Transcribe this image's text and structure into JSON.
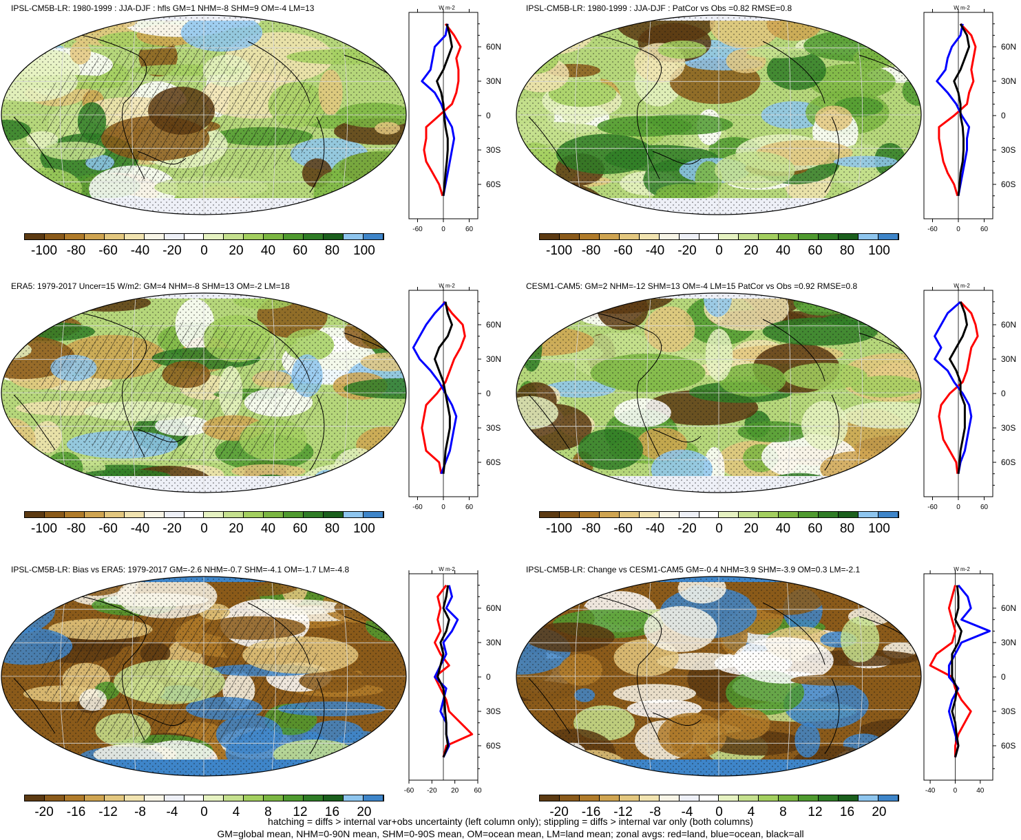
{
  "panels": [
    {
      "title": "IPSL-CM5B-LR: 1980-1999 : JJA-DJF : hfls GM=1 NHM=-8 SHM=9 OM=-4 LM=13",
      "colorbar_labels": [
        "-100",
        "-80",
        "-60",
        "-40",
        "-20",
        "0",
        "20",
        "40",
        "60",
        "80",
        "100"
      ],
      "zonal": {
        "unit": "W m-2",
        "xticks": [
          "-60",
          "0",
          "60"
        ],
        "xrange": [
          -80,
          80
        ],
        "yticks": [
          "60N",
          "30N",
          "0",
          "30S",
          "60S"
        ],
        "hatching": true,
        "lat": [
          80,
          70,
          60,
          50,
          40,
          30,
          20,
          10,
          0,
          -10,
          -20,
          -30,
          -40,
          -50,
          -60,
          -70
        ],
        "land": [
          5,
          25,
          40,
          30,
          35,
          35,
          30,
          20,
          -10,
          -40,
          -40,
          -45,
          -40,
          -25,
          -10,
          -2
        ],
        "ocean": [
          10,
          5,
          -20,
          -25,
          -30,
          -50,
          -20,
          -5,
          5,
          20,
          25,
          20,
          15,
          10,
          5,
          0
        ],
        "all": [
          8,
          15,
          20,
          10,
          0,
          -15,
          -5,
          0,
          2,
          5,
          10,
          10,
          8,
          5,
          3,
          0
        ]
      }
    },
    {
      "title": "IPSL-CM5B-LR: 1980-1999 : JJA-DJF : PatCor vs Obs =0.82 RMSE=0.8",
      "colorbar_labels": [
        "-100",
        "-80",
        "-60",
        "-40",
        "-20",
        "0",
        "20",
        "40",
        "60",
        "80",
        "100"
      ],
      "zonal": {
        "unit": "W m-2",
        "xticks": [
          "-60",
          "0",
          "60"
        ],
        "xrange": [
          -80,
          80
        ],
        "yticks": [
          "60N",
          "30N",
          "0",
          "30S",
          "60S"
        ],
        "hatching": false,
        "lat": [
          80,
          70,
          60,
          50,
          40,
          30,
          20,
          10,
          0,
          -10,
          -20,
          -30,
          -40,
          -50,
          -60,
          -70
        ],
        "land": [
          5,
          30,
          40,
          35,
          30,
          35,
          25,
          20,
          -10,
          -45,
          -45,
          -40,
          -35,
          -25,
          -10,
          -2
        ],
        "ocean": [
          10,
          5,
          -15,
          -25,
          -30,
          -50,
          -25,
          -5,
          8,
          25,
          20,
          20,
          15,
          10,
          5,
          0
        ],
        "all": [
          5,
          20,
          25,
          15,
          5,
          -10,
          0,
          5,
          5,
          10,
          12,
          12,
          10,
          5,
          3,
          0
        ]
      }
    },
    {
      "title": "ERA5: 1979-2017 Uncer=15 W/m2: GM=4 NHM=-8 SHM=13 OM=-2 LM=18",
      "colorbar_labels": [
        "-100",
        "-80",
        "-60",
        "-40",
        "-20",
        "0",
        "20",
        "40",
        "60",
        "80",
        "100"
      ],
      "zonal": {
        "unit": "W m-2",
        "xticks": [
          "-60",
          "0",
          "60"
        ],
        "xrange": [
          -80,
          80
        ],
        "yticks": [
          "60N",
          "30N",
          "0",
          "30S",
          "60S"
        ],
        "hatching": true,
        "lat": [
          80,
          70,
          60,
          50,
          40,
          30,
          20,
          10,
          0,
          -10,
          -20,
          -30,
          -40,
          -50,
          -60,
          -70
        ],
        "land": [
          0,
          20,
          45,
          50,
          40,
          25,
          15,
          5,
          -15,
          -40,
          -45,
          -50,
          -45,
          -40,
          -10,
          -5
        ],
        "ocean": [
          5,
          -20,
          -40,
          -55,
          -70,
          -55,
          -30,
          -10,
          5,
          20,
          30,
          25,
          20,
          15,
          5,
          -5
        ],
        "all": [
          5,
          10,
          20,
          10,
          -10,
          -20,
          -10,
          0,
          5,
          10,
          15,
          15,
          10,
          5,
          3,
          0
        ]
      }
    },
    {
      "title": "CESM1-CAM5: GM=2 NHM=-12 SHM=13 OM=-4 LM=15 PatCor vs Obs =0.92 RMSE=0.8",
      "colorbar_labels": [
        "-100",
        "-80",
        "-60",
        "-40",
        "-20",
        "0",
        "20",
        "40",
        "60",
        "80",
        "100"
      ],
      "zonal": {
        "unit": "W m-2",
        "xticks": [
          "-60",
          "0",
          "60"
        ],
        "xrange": [
          -80,
          80
        ],
        "yticks": [
          "60N",
          "30N",
          "0",
          "30S",
          "60S"
        ],
        "hatching": false,
        "lat": [
          80,
          70,
          60,
          50,
          40,
          30,
          20,
          10,
          0,
          -10,
          -20,
          -30,
          -40,
          -50,
          -60,
          -70
        ],
        "land": [
          5,
          30,
          40,
          45,
          30,
          25,
          20,
          10,
          -20,
          -40,
          -45,
          -40,
          -35,
          -20,
          -5,
          -2
        ],
        "ocean": [
          5,
          -25,
          -40,
          -55,
          -40,
          -55,
          -25,
          -10,
          10,
          25,
          30,
          25,
          20,
          15,
          5,
          0
        ],
        "all": [
          5,
          15,
          20,
          10,
          -5,
          -20,
          -5,
          5,
          5,
          15,
          15,
          15,
          10,
          5,
          3,
          0
        ]
      }
    },
    {
      "title": "IPSL-CM5B-LR: Bias vs ERA5: 1979-2017 GM=-2.6 NHM=-0.7 SHM=-4.1 OM=-1.7 LM=-4.8",
      "colorbar_labels": [
        "-20",
        "-16",
        "-12",
        "-8",
        "-4",
        "0",
        "4",
        "8",
        "12",
        "16",
        "20"
      ],
      "zonal": {
        "unit": "W m-2",
        "xticks": [
          "-60",
          "-20",
          "20",
          "60"
        ],
        "xrange": [
          -60,
          60
        ],
        "yticks": [
          "60N",
          "30N",
          "0",
          "30S",
          "60S"
        ],
        "hatching": true,
        "lat": [
          80,
          70,
          60,
          50,
          40,
          30,
          20,
          10,
          0,
          -10,
          -20,
          -30,
          -40,
          -50,
          -60,
          -70
        ],
        "land": [
          5,
          -10,
          -5,
          -10,
          -5,
          -15,
          -5,
          10,
          -15,
          -5,
          5,
          10,
          30,
          50,
          5,
          0
        ],
        "ocean": [
          10,
          15,
          5,
          25,
          15,
          0,
          5,
          -5,
          -15,
          5,
          0,
          -5,
          5,
          5,
          10,
          0
        ],
        "all": [
          8,
          5,
          0,
          10,
          5,
          -5,
          0,
          -5,
          -10,
          0,
          2,
          3,
          5,
          5,
          8,
          0
        ]
      }
    },
    {
      "title": "IPSL-CM5B-LR: Change vs CESM1-CAM5 GM=-0.4 NHM=3.9 SHM=-3.9 OM=0.3 LM=-2.1",
      "colorbar_labels": [
        "-20",
        "-16",
        "-12",
        "-8",
        "-4",
        "0",
        "4",
        "8",
        "12",
        "16",
        "20"
      ],
      "zonal": {
        "unit": "W m-2",
        "xticks": [
          "-40",
          "0",
          "40"
        ],
        "xrange": [
          -50,
          60
        ],
        "yticks": [
          "60N",
          "30N",
          "0",
          "30S",
          "60S"
        ],
        "hatching": false,
        "lat": [
          80,
          70,
          60,
          50,
          40,
          30,
          20,
          10,
          0,
          -10,
          -20,
          -30,
          -40,
          -50,
          -60,
          -70
        ],
        "land": [
          0,
          -5,
          -10,
          -5,
          0,
          -5,
          -30,
          -40,
          -5,
          0,
          10,
          25,
          15,
          5,
          0,
          0
        ],
        "ocean": [
          5,
          20,
          25,
          10,
          55,
          10,
          0,
          -10,
          -10,
          5,
          -5,
          -10,
          -5,
          0,
          5,
          0
        ],
        "all": [
          3,
          5,
          5,
          0,
          10,
          5,
          -5,
          -5,
          -5,
          3,
          0,
          -5,
          0,
          2,
          5,
          0
        ]
      }
    }
  ],
  "footer": [
    "hatching = diffs > internal var+obs uncertainty (left column only); stippling = diffs > internal var only (both columns)",
    "GM=global mean, NHM=0-90N mean, SHM=0-90S mean, OM=ocean mean, LM=land mean; zonal avgs: red=land, blue=ocean, black=all"
  ],
  "colors": {
    "palette": [
      "#5c3a12",
      "#8a5a1a",
      "#b07b2a",
      "#cfa451",
      "#e3c77f",
      "#f1e3b0",
      "#f8f5e7",
      "#eef0f7",
      "#ffffff",
      "#e6f2c2",
      "#c5e08e",
      "#a3cf5f",
      "#7bb642",
      "#4f9a2f",
      "#2f7c26",
      "#1b5f1d",
      "#8ec5ee",
      "#3e85c9"
    ],
    "land_line": "#ff0000",
    "ocean_line": "#0000ff",
    "all_line": "#000000"
  }
}
